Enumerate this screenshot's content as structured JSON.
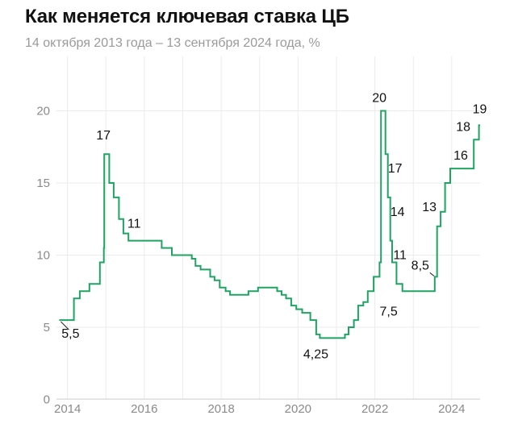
{
  "header": {
    "title": "Как меняется ключевая ставка ЦБ",
    "subtitle": "14 октября 2013 года – 13 сентября 2024 года, %"
  },
  "chart_data": {
    "type": "line",
    "title": "Как меняется ключевая ставка ЦБ",
    "subtitle": "14 октября 2013 года – 13 сентября 2024 года, %",
    "ylim": [
      0,
      20
    ],
    "xlim": [
      "2013-10-14",
      "2024-09-13"
    ],
    "yticks": [
      "0",
      "5",
      "10",
      "15",
      "20"
    ],
    "xticks": [
      "2014",
      "2016",
      "2018",
      "2020",
      "2022",
      "2024"
    ],
    "grid": true,
    "line_color": "#1fa463",
    "step": true,
    "series": [
      {
        "points": [
          [
            "2013-10-14",
            5.5
          ],
          [
            "2014-03-03",
            7.0
          ],
          [
            "2014-04-28",
            7.5
          ],
          [
            "2014-07-28",
            8.0
          ],
          [
            "2014-11-05",
            9.5
          ],
          [
            "2014-12-12",
            10.5
          ],
          [
            "2014-12-16",
            17.0
          ],
          [
            "2015-02-02",
            15.0
          ],
          [
            "2015-03-16",
            14.0
          ],
          [
            "2015-05-05",
            12.5
          ],
          [
            "2015-06-16",
            11.5
          ],
          [
            "2015-08-03",
            11.0
          ],
          [
            "2016-06-14",
            10.5
          ],
          [
            "2016-09-19",
            10.0
          ],
          [
            "2017-03-27",
            9.75
          ],
          [
            "2017-05-02",
            9.25
          ],
          [
            "2017-06-19",
            9.0
          ],
          [
            "2017-09-18",
            8.5
          ],
          [
            "2017-10-30",
            8.25
          ],
          [
            "2017-12-18",
            7.75
          ],
          [
            "2018-02-12",
            7.5
          ],
          [
            "2018-03-26",
            7.25
          ],
          [
            "2018-09-17",
            7.5
          ],
          [
            "2018-12-17",
            7.75
          ],
          [
            "2019-06-17",
            7.5
          ],
          [
            "2019-07-29",
            7.25
          ],
          [
            "2019-09-09",
            7.0
          ],
          [
            "2019-10-28",
            6.5
          ],
          [
            "2019-12-16",
            6.25
          ],
          [
            "2020-02-10",
            6.0
          ],
          [
            "2020-04-27",
            5.5
          ],
          [
            "2020-06-22",
            4.5
          ],
          [
            "2020-07-27",
            4.25
          ],
          [
            "2021-03-22",
            4.5
          ],
          [
            "2021-04-26",
            5.0
          ],
          [
            "2021-06-15",
            5.5
          ],
          [
            "2021-07-26",
            6.5
          ],
          [
            "2021-09-13",
            6.75
          ],
          [
            "2021-10-25",
            7.5
          ],
          [
            "2021-12-20",
            8.5
          ],
          [
            "2022-02-14",
            9.5
          ],
          [
            "2022-02-28",
            20.0
          ],
          [
            "2022-04-11",
            17.0
          ],
          [
            "2022-05-04",
            14.0
          ],
          [
            "2022-05-27",
            11.0
          ],
          [
            "2022-06-14",
            9.5
          ],
          [
            "2022-07-25",
            8.0
          ],
          [
            "2022-09-19",
            7.5
          ],
          [
            "2023-07-24",
            8.5
          ],
          [
            "2023-08-15",
            12.0
          ],
          [
            "2023-09-18",
            13.0
          ],
          [
            "2023-10-30",
            15.0
          ],
          [
            "2023-12-18",
            16.0
          ],
          [
            "2024-07-29",
            18.0
          ],
          [
            "2024-09-16",
            19.0
          ],
          [
            "2024-09-27",
            19.0
          ]
        ]
      }
    ],
    "annotations": [
      {
        "text": "5,5",
        "date": "2013-10-14",
        "value": 5.5
      },
      {
        "text": "17",
        "date": "2014-12-16",
        "value": 17.0
      },
      {
        "text": "11",
        "date": "2015-08-03",
        "value": 11.0
      },
      {
        "text": "4,25",
        "date": "2020-07-27",
        "value": 4.25
      },
      {
        "text": "20",
        "date": "2022-02-28",
        "value": 20.0
      },
      {
        "text": "17",
        "date": "2022-04-11",
        "value": 17.0
      },
      {
        "text": "14",
        "date": "2022-05-04",
        "value": 14.0
      },
      {
        "text": "11",
        "date": "2022-05-27",
        "value": 11.0
      },
      {
        "text": "7,5",
        "date": "2022-09-19",
        "value": 7.5
      },
      {
        "text": "8,5",
        "date": "2023-07-24",
        "value": 8.5
      },
      {
        "text": "13",
        "date": "2023-09-18",
        "value": 13.0
      },
      {
        "text": "16",
        "date": "2023-12-18",
        "value": 16.0
      },
      {
        "text": "18",
        "date": "2024-07-29",
        "value": 18.0
      },
      {
        "text": "19",
        "date": "2024-09-16",
        "value": 19.0
      }
    ]
  }
}
